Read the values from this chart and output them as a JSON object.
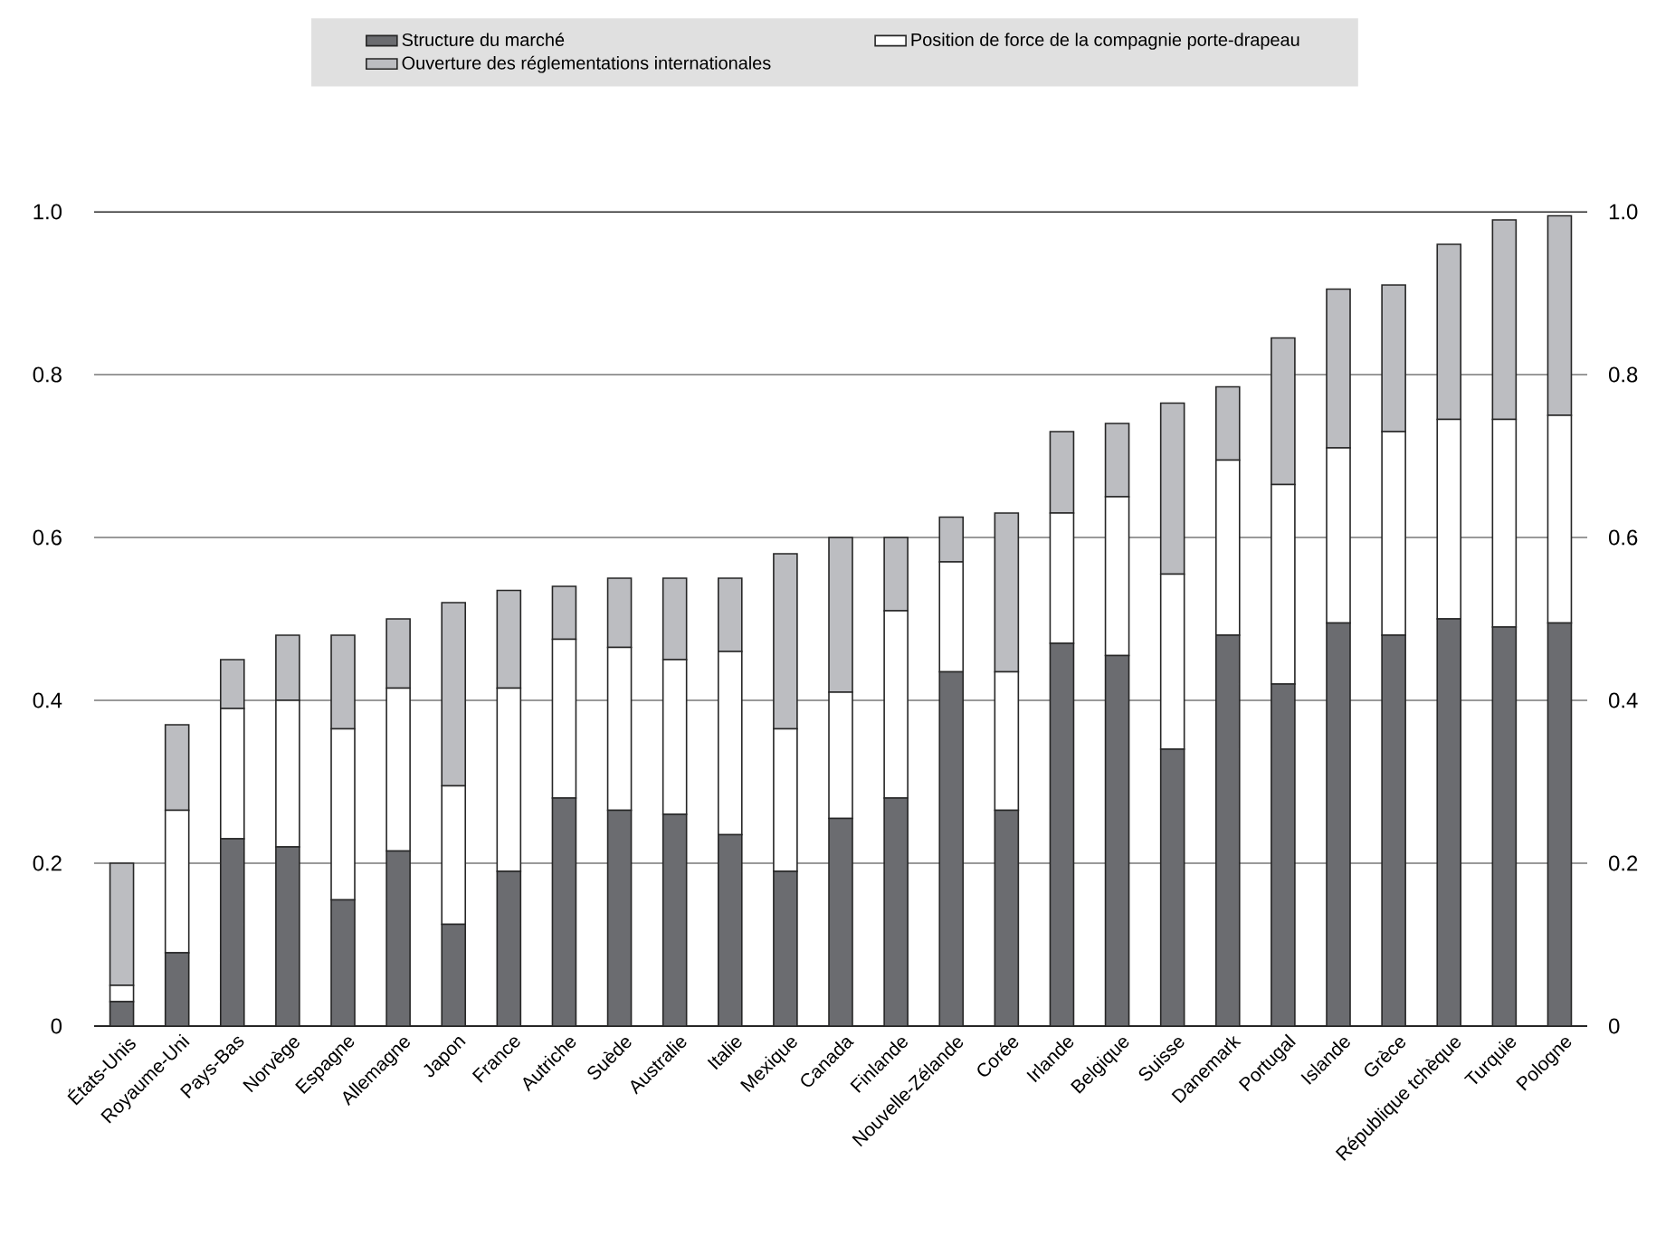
{
  "chart_data": {
    "type": "bar",
    "stacked": true,
    "categories": [
      "États-Unis",
      "Royaume-Uni",
      "Pays-Bas",
      "Norvège",
      "Espagne",
      "Allemagne",
      "Japon",
      "France",
      "Autriche",
      "Suède",
      "Australie",
      "Italie",
      "Mexique",
      "Canada",
      "Finlande",
      "Nouvelle-Zélande",
      "Corée",
      "Irlande",
      "Belgique",
      "Suisse",
      "Danemark",
      "Portugal",
      "Islande",
      "Grèce",
      "République tchèque",
      "Turquie",
      "Pologne"
    ],
    "series": [
      {
        "name": "Structure du marché",
        "color": "#6b6c70",
        "values": [
          0.03,
          0.09,
          0.23,
          0.22,
          0.155,
          0.215,
          0.125,
          0.19,
          0.28,
          0.265,
          0.26,
          0.235,
          0.19,
          0.255,
          0.28,
          0.435,
          0.265,
          0.47,
          0.455,
          0.34,
          0.48,
          0.42,
          0.495,
          0.48,
          0.5,
          0.49,
          0.495
        ]
      },
      {
        "name": "Position de force de la compagnie porte-drapeau",
        "color": "#ffffff",
        "values": [
          0.02,
          0.175,
          0.16,
          0.18,
          0.21,
          0.2,
          0.17,
          0.225,
          0.195,
          0.2,
          0.19,
          0.225,
          0.175,
          0.155,
          0.23,
          0.135,
          0.17,
          0.16,
          0.195,
          0.215,
          0.215,
          0.245,
          0.215,
          0.25,
          0.245,
          0.255,
          0.255
        ]
      },
      {
        "name": "Ouverture des réglementations internationales",
        "color": "#bcbdc1",
        "values": [
          0.15,
          0.105,
          0.06,
          0.08,
          0.115,
          0.085,
          0.225,
          0.12,
          0.065,
          0.085,
          0.1,
          0.09,
          0.215,
          0.19,
          0.09,
          0.055,
          0.195,
          0.1,
          0.09,
          0.21,
          0.09,
          0.18,
          0.195,
          0.18,
          0.215,
          0.245,
          0.245
        ]
      }
    ],
    "ylim": [
      0,
      1.0
    ],
    "yticks": [
      0,
      {
        "value": 0.2,
        "label": "0.2"
      },
      {
        "value": 0.4,
        "label": "0.4"
      },
      {
        "value": 0.6,
        "label": "0.6"
      },
      {
        "value": 0.8,
        "label": "0.8"
      },
      {
        "value": 1.0,
        "label": "1.0"
      }
    ],
    "y2lim": [
      0,
      1.0
    ],
    "y2ticks": [
      0,
      {
        "value": 0.2,
        "label": "0.2"
      },
      {
        "value": 0.4,
        "label": "0.4"
      },
      {
        "value": 0.6,
        "label": "0.6"
      },
      {
        "value": 0.8,
        "label": "0.8"
      },
      {
        "value": 1.0,
        "label": "1.0"
      }
    ],
    "grid": "y",
    "legend": "top"
  }
}
